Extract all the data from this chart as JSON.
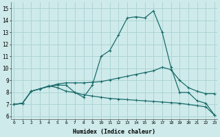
{
  "xlabel": "Humidex (Indice chaleur)",
  "background_color": "#ceeaea",
  "grid_color": "#aed4d4",
  "line_color": "#1a6b6b",
  "x_ticks": [
    0,
    1,
    2,
    3,
    4,
    5,
    6,
    7,
    8,
    9,
    10,
    11,
    12,
    13,
    14,
    15,
    16,
    17,
    18,
    19,
    20,
    21,
    22,
    23
  ],
  "y_ticks": [
    6,
    7,
    8,
    9,
    10,
    11,
    12,
    13,
    14,
    15
  ],
  "ylim": [
    5.8,
    15.5
  ],
  "xlim": [
    -0.3,
    23.3
  ],
  "line1_y": [
    7.0,
    7.1,
    8.1,
    8.3,
    8.5,
    8.6,
    8.6,
    8.0,
    7.6,
    8.6,
    11.0,
    11.5,
    12.8,
    14.2,
    14.3,
    14.2,
    14.8,
    13.0,
    10.1,
    8.0,
    8.0,
    7.3,
    7.1,
    6.1
  ],
  "line2_y": [
    7.0,
    7.1,
    8.1,
    8.3,
    8.5,
    8.7,
    8.8,
    8.8,
    8.8,
    8.85,
    8.9,
    9.05,
    9.2,
    9.35,
    9.5,
    9.65,
    9.8,
    10.1,
    9.9,
    9.0,
    8.4,
    8.1,
    7.9,
    7.9
  ],
  "line3_y": [
    7.0,
    7.1,
    8.1,
    8.3,
    8.55,
    8.4,
    8.1,
    8.0,
    7.8,
    7.7,
    7.6,
    7.5,
    7.45,
    7.4,
    7.35,
    7.3,
    7.25,
    7.2,
    7.15,
    7.1,
    7.0,
    6.9,
    6.8,
    6.1
  ]
}
